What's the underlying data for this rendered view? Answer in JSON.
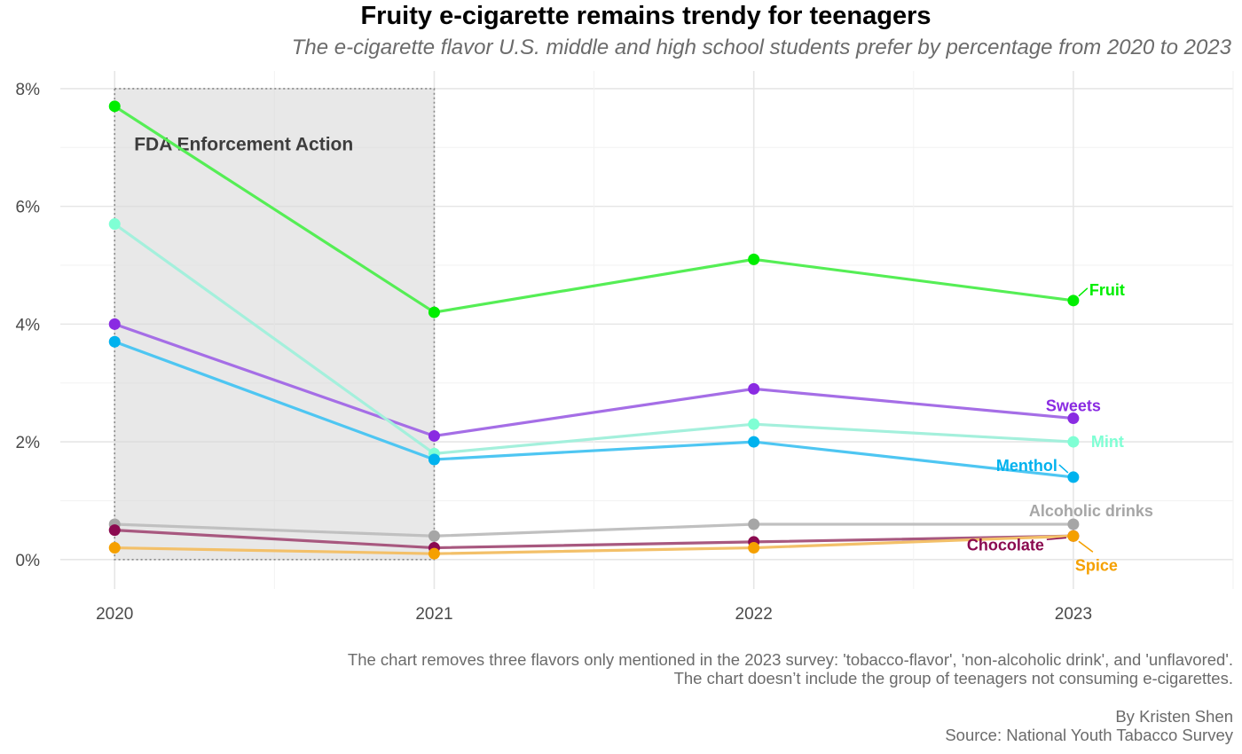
{
  "chart_data": {
    "type": "line",
    "title": "Fruity e-cigarette remains trendy for teenagers",
    "subtitle": "The e-cigarette flavor U.S. middle and high school students prefer by percentage from 2020 to 2023",
    "xlabel": "",
    "ylabel": "",
    "x": [
      2020,
      2021,
      2022,
      2023
    ],
    "x_tick_labels": [
      "2020",
      "2021",
      "2022",
      "2023"
    ],
    "xlim": [
      2019.83,
      2023.5
    ],
    "ylim": [
      -0.5,
      8.3
    ],
    "y_ticks": [
      0,
      2,
      4,
      6,
      8
    ],
    "y_tick_labels": [
      "0%",
      "2%",
      "4%",
      "6%",
      "8%"
    ],
    "grid": true,
    "legend": "direct labels at line ends",
    "annotation": {
      "label": "FDA Enforcement Action",
      "x_range": [
        2020,
        2021
      ],
      "y_range": [
        0,
        8
      ]
    },
    "series": [
      {
        "name": "Fruit",
        "values": [
          7.7,
          4.2,
          5.1,
          4.4
        ],
        "color": "#00ee00",
        "line_color": "#55ee55"
      },
      {
        "name": "Sweets",
        "values": [
          4.0,
          2.1,
          2.9,
          2.4
        ],
        "color": "#8a2be2",
        "line_color": "#a56ee6"
      },
      {
        "name": "Mint",
        "values": [
          5.7,
          1.8,
          2.3,
          2.0
        ],
        "color": "#7fffd4",
        "line_color": "#a4f0dc"
      },
      {
        "name": "Menthol",
        "values": [
          3.7,
          1.7,
          2.0,
          1.4
        ],
        "color": "#00b2ee",
        "line_color": "#4ec6f2"
      },
      {
        "name": "Alcoholic drinks",
        "values": [
          0.6,
          0.4,
          0.6,
          0.6
        ],
        "color": "#a6a6a6",
        "line_color": "#c0c0c0"
      },
      {
        "name": "Chocolate",
        "values": [
          0.5,
          0.2,
          0.3,
          0.4
        ],
        "color": "#8b0a50",
        "line_color": "#a8587f"
      },
      {
        "name": "Spice",
        "values": [
          0.2,
          0.1,
          0.2,
          0.4
        ],
        "color": "#f5a000",
        "line_color": "#f3c069"
      }
    ]
  },
  "caption": {
    "note_line1": "The chart removes three flavors only mentioned in the 2023 survey: 'tobacco-flavor', 'non-alcoholic drink', and 'unflavored'.",
    "note_line2": "The chart doesn’t include the group of teenagers not consuming e-cigarettes.",
    "author": "By Kristen Shen",
    "source": "Source: National Youth Tabacco Survey"
  }
}
